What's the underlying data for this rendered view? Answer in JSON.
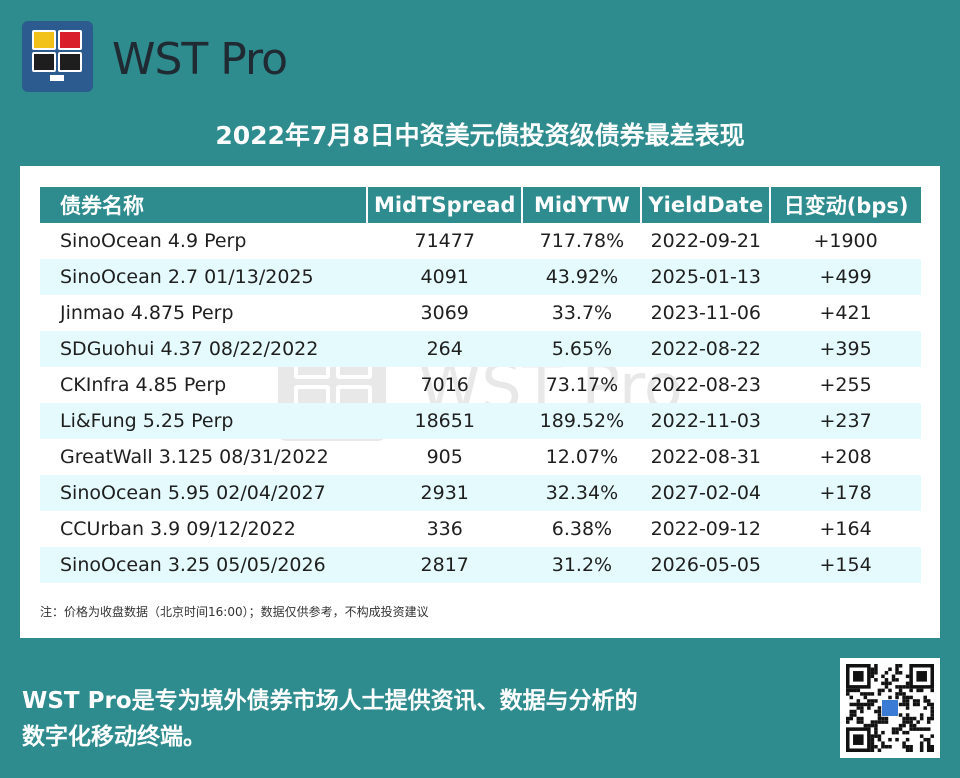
{
  "brand": {
    "name": "WST Pro",
    "colors": [
      "#f2c21b",
      "#d9202a",
      "#1e1e1e",
      "#1e1e1e"
    ]
  },
  "title": "2022年7月8日中资美元债投资级债券最差表现",
  "table": {
    "headers": [
      "债券名称",
      "MidTSpread",
      "MidYTW",
      "YieldDate",
      "日变动(bps)"
    ],
    "rows": [
      [
        "SinoOcean 4.9 Perp",
        "71477",
        "717.78%",
        "2022-09-21",
        "+1900"
      ],
      [
        "SinoOcean 2.7 01/13/2025",
        "4091",
        "43.92%",
        "2025-01-13",
        "+499"
      ],
      [
        "Jinmao 4.875 Perp",
        "3069",
        "33.7%",
        "2023-11-06",
        "+421"
      ],
      [
        "SDGuohui 4.37 08/22/2022",
        "264",
        "5.65%",
        "2022-08-22",
        "+395"
      ],
      [
        "CKInfra 4.85 Perp",
        "7016",
        "73.17%",
        "2022-08-23",
        "+255"
      ],
      [
        "Li&Fung 5.25 Perp",
        "18651",
        "189.52%",
        "2022-11-03",
        "+237"
      ],
      [
        "GreatWall 3.125 08/31/2022",
        "905",
        "12.07%",
        "2022-08-31",
        "+208"
      ],
      [
        "SinoOcean 5.95 02/04/2027",
        "2931",
        "32.34%",
        "2027-02-04",
        "+178"
      ],
      [
        "CCUrban 3.9 09/12/2022",
        "336",
        "6.38%",
        "2022-09-12",
        "+164"
      ],
      [
        "SinoOcean 3.25 05/05/2026",
        "2817",
        "31.2%",
        "2026-05-05",
        "+154"
      ]
    ]
  },
  "note": "注：价格为收盘数据（北京时间16:00）；数据仅供参考，不构成投资建议",
  "watermark": "WST Pro",
  "footer": {
    "line1": "WST Pro是专为境外债券市场人士提供资讯、数据与分析的",
    "line2": "数字化移动终端。"
  },
  "qr": {
    "icon": "qr-code-icon"
  }
}
